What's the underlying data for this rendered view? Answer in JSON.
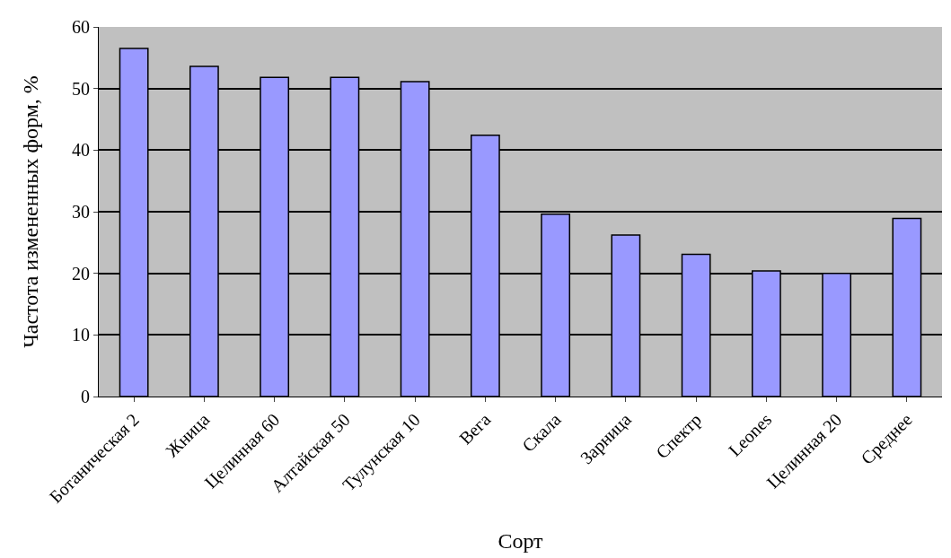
{
  "chart_data": {
    "type": "bar",
    "xlabel": "Сорт",
    "ylabel": "Частота измененных форм, %",
    "categories": [
      "Ботаническая 2",
      "Жница",
      "Целинная 60",
      "Алтайская 50",
      "Тулунская 10",
      "Вега",
      "Скала",
      "Зарница",
      "Спектр",
      "Leones",
      "Целинная 20",
      "Среднее"
    ],
    "values": [
      56.5,
      53.6,
      51.8,
      51.8,
      51.1,
      42.4,
      29.6,
      26.2,
      23.1,
      20.4,
      20.0,
      28.9
    ],
    "color": "#9999ff",
    "ylim": [
      0,
      60
    ],
    "yticks": [
      0,
      10,
      20,
      30,
      40,
      50,
      60
    ],
    "grid": "y"
  }
}
